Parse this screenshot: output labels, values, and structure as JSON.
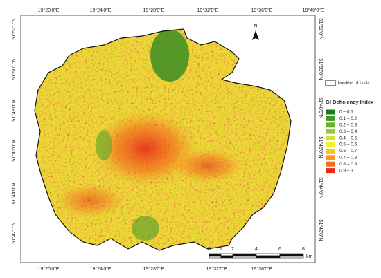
{
  "top_labels": [
    "19°20'0\"E",
    "19°24'0\"E",
    "19°28'0\"E",
    "19°32'0\"E",
    "19°36'0\"E",
    "19°40'0\"E"
  ],
  "bottom_labels": [
    "19°20'0\"E",
    "19°24'0\"E",
    "19°28'0\"E",
    "19°32'0\"E",
    "19°36'0\"E"
  ],
  "left_labels": [
    "51°52'0\"N",
    "51°50'0\"N",
    "51°48'0\"N",
    "51°46'0\"N",
    "51°44'0\"N",
    "51°42'0\"N"
  ],
  "right_labels": [
    "51°52'0\"N",
    "51°50'0\"N",
    "51°48'0\"N",
    "51°46'0\"N",
    "51°44'0\"N",
    "51°42'0\"N"
  ],
  "north": "N",
  "legend": {
    "border_label": "borders of Lodz",
    "title": "GI Deficiency Index",
    "items": [
      {
        "label": "0 – 0.1",
        "color": "#1a7a1a"
      },
      {
        "label": "0.1 – 0.2",
        "color": "#3d9a2a"
      },
      {
        "label": "0.2 – 0.3",
        "color": "#6cb030"
      },
      {
        "label": "0.3 – 0.4",
        "color": "#9bc935"
      },
      {
        "label": "0.4 – 0.5",
        "color": "#d4e23a"
      },
      {
        "label": "0.5 – 0.6",
        "color": "#f5ee2e"
      },
      {
        "label": "0.6 – 0.7",
        "color": "#f7c52a"
      },
      {
        "label": "0.7 – 0.8",
        "color": "#f79a22"
      },
      {
        "label": "0.8 – 0.9",
        "color": "#f46a1c"
      },
      {
        "label": "0.9 – 1",
        "color": "#e8281a"
      }
    ]
  },
  "scale": {
    "labels": [
      "0",
      "1",
      "2",
      "4",
      "6",
      "8"
    ],
    "unit": "km"
  }
}
